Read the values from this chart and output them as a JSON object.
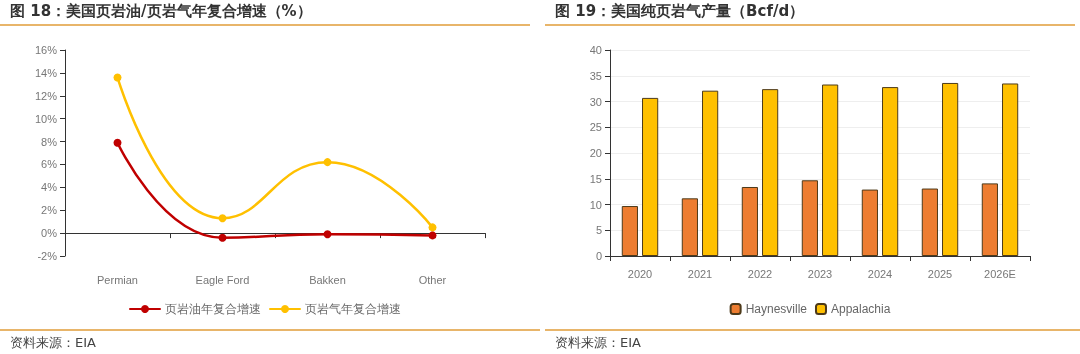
{
  "chart_data": [
    {
      "type": "line",
      "title": "图 18：美国页岩油/页岩气年复合增速（%）",
      "categories": [
        "Permian",
        "Eagle Ford",
        "Bakken",
        "Other"
      ],
      "series": [
        {
          "name": "页岩油年复合增速",
          "color": "#c00000",
          "values": [
            7.9,
            -0.4,
            -0.1,
            -0.2
          ]
        },
        {
          "name": "页岩气年复合增速",
          "color": "#ffc000",
          "values": [
            13.6,
            1.3,
            6.2,
            0.5
          ]
        }
      ],
      "ylim": [
        -2,
        16
      ],
      "yticks": [
        {
          "value": -2,
          "label": "-2%"
        },
        {
          "value": 0,
          "label": "0%"
        },
        {
          "value": 2,
          "label": "2%"
        },
        {
          "value": 4,
          "label": "4%"
        },
        {
          "value": 6,
          "label": "6%"
        },
        {
          "value": 8,
          "label": "8%"
        },
        {
          "value": 10,
          "label": "10%"
        },
        {
          "value": 12,
          "label": "12%"
        },
        {
          "value": 14,
          "label": "14%"
        },
        {
          "value": 16,
          "label": "16%"
        }
      ],
      "legend": "bottom",
      "marker": "circle",
      "annotations": [
        "资料来源：EIA"
      ]
    },
    {
      "type": "bar",
      "title": "图 19：美国纯页岩气产量（Bcf/d）",
      "categories": [
        "2020",
        "2021",
        "2022",
        "2023",
        "2024",
        "2025",
        "2026E"
      ],
      "series": [
        {
          "name": "Haynesville",
          "color": "#ed7d31",
          "values": [
            9.7,
            11.2,
            13.4,
            14.7,
            12.9,
            13.1,
            14.1
          ]
        },
        {
          "name": "Appalachia",
          "color": "#ffc000",
          "values": [
            30.7,
            32.1,
            32.4,
            33.3,
            32.8,
            33.6,
            33.5
          ]
        }
      ],
      "ylim": [
        0,
        40
      ],
      "yticks": [
        0,
        5,
        10,
        15,
        20,
        25,
        30,
        35,
        40
      ],
      "grid": "y",
      "legend": "bottom",
      "annotations": [
        "资料来源：EIA"
      ]
    }
  ]
}
